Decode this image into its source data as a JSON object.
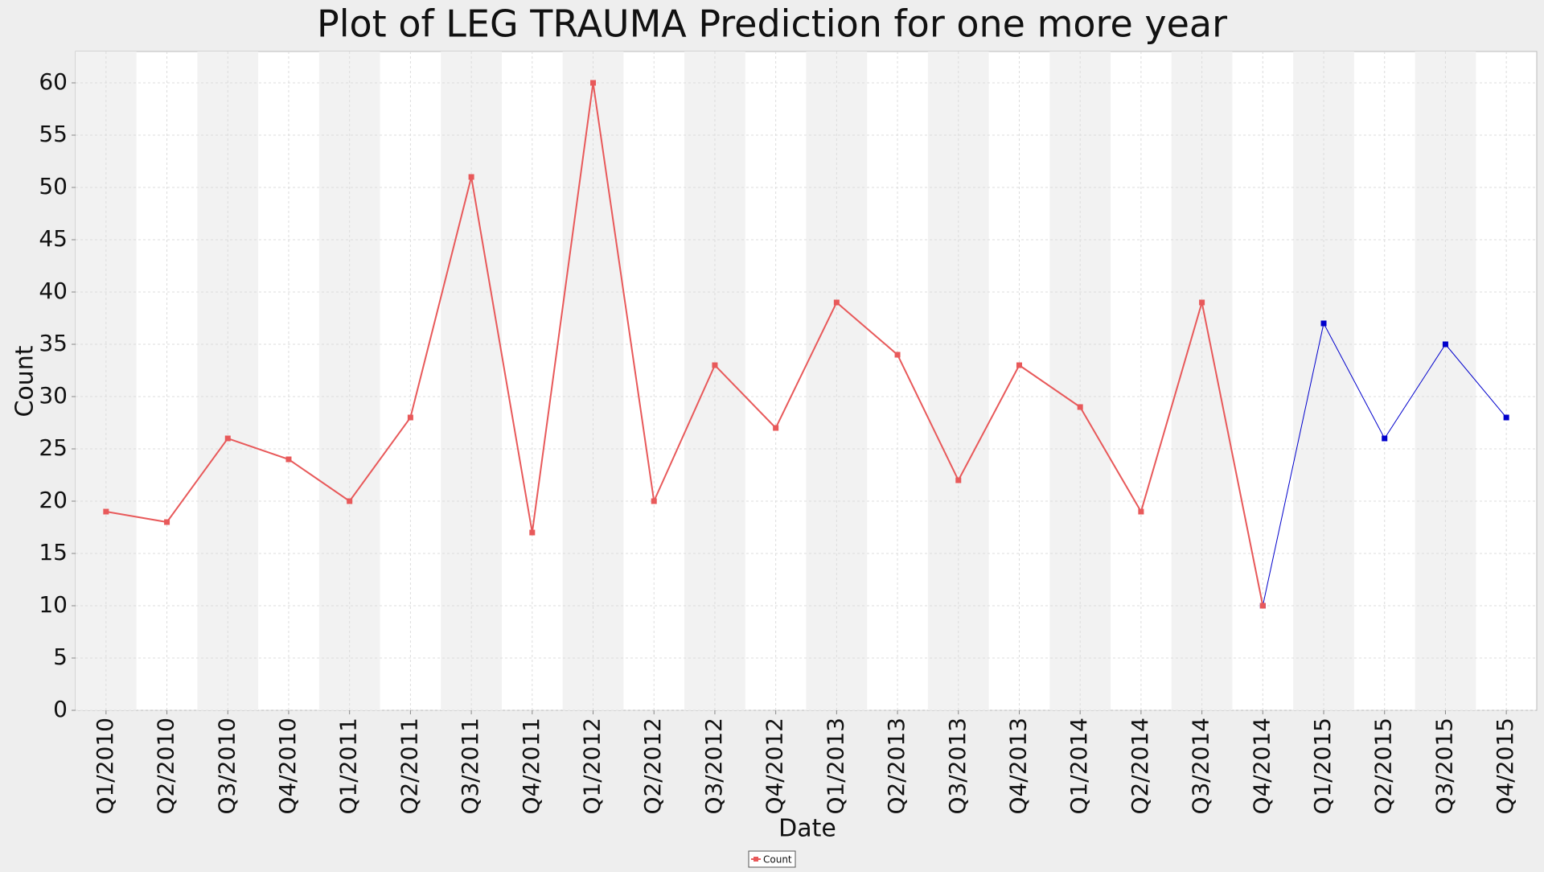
{
  "chart_data": {
    "type": "line",
    "title": "Plot of LEG TRAUMA Prediction for one more year",
    "x_label": "Date",
    "y_label": "Count",
    "categories": [
      "Q1/2010",
      "Q2/2010",
      "Q3/2010",
      "Q4/2010",
      "Q1/2011",
      "Q2/2011",
      "Q3/2011",
      "Q4/2011",
      "Q1/2012",
      "Q2/2012",
      "Q3/2012",
      "Q4/2012",
      "Q1/2013",
      "Q2/2013",
      "Q3/2013",
      "Q4/2013",
      "Q1/2014",
      "Q2/2014",
      "Q3/2014",
      "Q4/2014",
      "Q1/2015",
      "Q2/2015",
      "Q3/2015",
      "Q4/2015"
    ],
    "series": [
      {
        "name": "Count",
        "color": "#e8595a",
        "values": [
          19,
          18,
          26,
          24,
          20,
          28,
          51,
          17,
          60,
          20,
          33,
          27,
          39,
          34,
          22,
          33,
          29,
          19,
          39,
          10,
          null,
          null,
          null,
          null
        ]
      },
      {
        "color": "#0000cc",
        "values": [
          null,
          null,
          null,
          null,
          null,
          null,
          null,
          null,
          null,
          null,
          null,
          null,
          null,
          null,
          null,
          null,
          null,
          null,
          null,
          10,
          37,
          26,
          35,
          28
        ]
      }
    ],
    "ylim": [
      0,
      63
    ],
    "yticks": [
      0,
      5,
      10,
      15,
      20,
      25,
      30,
      35,
      40,
      45,
      50,
      55,
      60
    ],
    "grid": true,
    "legend": "bottom"
  }
}
